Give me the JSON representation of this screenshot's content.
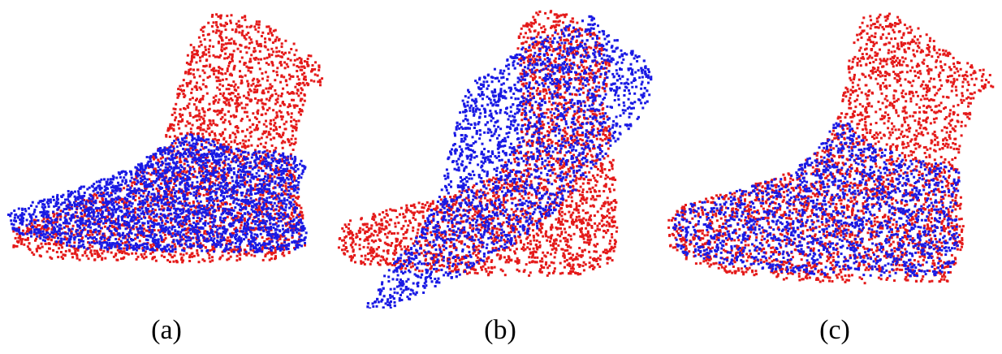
{
  "colors": {
    "source_cloud": "#e41a1a",
    "target_cloud": "#1a1ae4",
    "background": "#ffffff"
  },
  "panels": [
    {
      "id": "a",
      "caption": "(a)"
    },
    {
      "id": "b",
      "caption": "(b)"
    },
    {
      "id": "c",
      "caption": "(c)"
    }
  ]
}
